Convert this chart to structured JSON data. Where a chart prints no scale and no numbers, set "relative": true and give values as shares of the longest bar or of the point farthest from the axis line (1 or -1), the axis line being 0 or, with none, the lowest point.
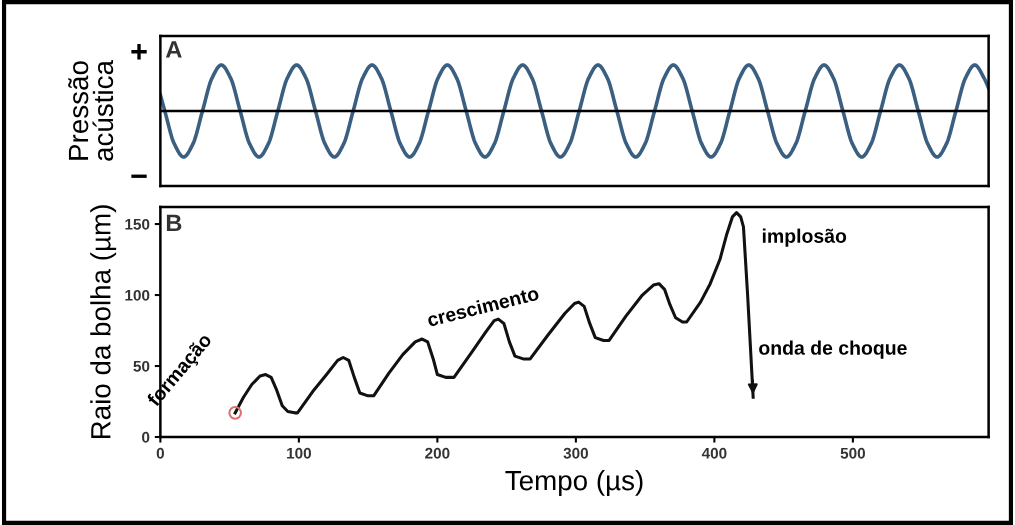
{
  "chart_data": [
    {
      "type": "line",
      "ylabel": "Pressão\nacústica",
      "relative": true,
      "xlim": [
        0,
        598
      ],
      "annotations": [
        "A",
        "+",
        "−"
      ],
      "series": [
        {
          "color": "#3a5f80",
          "x": [
            0,
            3.2,
            10.0,
            16.8,
            23.6,
            30.4,
            37.2,
            44.0,
            50.8,
            57.6,
            64.4,
            71.2,
            78.0,
            84.8,
            91.6,
            98.4,
            105.2,
            112.0,
            118.8,
            125.6,
            132.4,
            139.2,
            146.0,
            152.8,
            159.6,
            166.4,
            173.2,
            180.0,
            186.8,
            193.6,
            200.4,
            207.2,
            214.0,
            220.8,
            227.6,
            234.4,
            241.2,
            248.0,
            254.8,
            261.6,
            268.4,
            275.2,
            282.0,
            288.8,
            295.6,
            302.4,
            309.2,
            316.0,
            322.8,
            329.6,
            336.4,
            343.2,
            350.0,
            356.8,
            363.6,
            370.4,
            377.2,
            384.0,
            390.8,
            397.6,
            404.4,
            411.2,
            418.0,
            424.8,
            431.6,
            438.4,
            445.2,
            452.0,
            458.8,
            465.6,
            472.4,
            479.2,
            486.0,
            492.8,
            499.6,
            506.4,
            513.2,
            520.0,
            526.8,
            533.6,
            540.4,
            547.2,
            554.0,
            560.8,
            567.6,
            574.4,
            581.2,
            588.0,
            594.8,
            598
          ],
          "values": [
            0.35,
            0,
            -0.71,
            -1,
            -0.71,
            0,
            0.71,
            1,
            0.71,
            0,
            -0.71,
            -1,
            -0.71,
            0,
            0.71,
            1,
            0.71,
            0,
            -0.71,
            -1,
            -0.71,
            0,
            0.71,
            1,
            0.71,
            0,
            -0.71,
            -1,
            -0.71,
            0,
            0.71,
            1,
            0.71,
            0,
            -0.71,
            -1,
            -0.71,
            0,
            0.71,
            1,
            0.71,
            0,
            -0.71,
            -1,
            -0.71,
            0,
            0.71,
            1,
            0.71,
            0,
            -0.71,
            -1,
            -0.71,
            0,
            0.71,
            1,
            0.71,
            0,
            -0.71,
            -1,
            -0.71,
            0,
            0.71,
            1,
            0.71,
            0,
            -0.71,
            -1,
            -0.71,
            0,
            0.71,
            1,
            0.71,
            0,
            -0.71,
            -1,
            -0.71,
            0,
            0.71,
            1,
            0.71,
            0,
            -0.71,
            -1,
            -0.71,
            0,
            0.71,
            1,
            0.71,
            0.5
          ]
        }
      ]
    },
    {
      "type": "line",
      "xlabel": "Tempo (µs)",
      "ylabel": "Raio da bolha (µm)",
      "xlim": [
        0,
        598
      ],
      "ylim": [
        0,
        162
      ],
      "xticks": [
        0,
        100,
        200,
        300,
        400,
        500
      ],
      "yticks": [
        0,
        50,
        100,
        150
      ],
      "annotations": [
        "B",
        {
          "text": "formação",
          "x": 54,
          "y": 17
        },
        "crescimento",
        {
          "text": "implosão",
          "x": 416,
          "y": 158
        },
        "onda de choque"
      ],
      "series": [
        {
          "type": "line",
          "color": "#111111",
          "x": [
            54,
            60,
            66,
            72,
            76,
            80,
            84,
            88,
            92,
            97,
            99,
            110,
            120,
            128,
            132,
            136,
            140,
            144,
            150,
            154,
            165,
            175,
            184,
            189,
            193,
            197,
            200,
            206,
            212,
            225,
            235,
            241,
            244,
            248,
            252,
            256,
            262,
            267,
            280,
            292,
            299,
            302,
            306,
            310,
            314,
            320,
            324,
            336,
            348,
            356,
            360,
            364,
            368,
            372,
            377,
            380,
            390,
            397,
            404,
            409,
            413,
            416,
            419,
            421,
            424,
            428
          ],
          "values": [
            17,
            28,
            37,
            43,
            44,
            42,
            33,
            22,
            18,
            17,
            17,
            32,
            44,
            54,
            56,
            54,
            42,
            31,
            29,
            29,
            45,
            58,
            67,
            69,
            67,
            55,
            44,
            42,
            42,
            60,
            74,
            82,
            83,
            80,
            67,
            57,
            55,
            55,
            72,
            87,
            94,
            95,
            92,
            80,
            70,
            68,
            68,
            85,
            100,
            107,
            108,
            104,
            93,
            84,
            81,
            81,
            95,
            108,
            125,
            143,
            155,
            158,
            155,
            148,
            100,
            28
          ]
        },
        {
          "type": "scatter",
          "color": "#e07070",
          "marker": "circle",
          "x": [
            54
          ],
          "values": [
            17
          ]
        }
      ]
    }
  ]
}
